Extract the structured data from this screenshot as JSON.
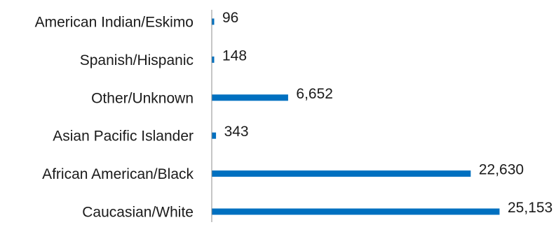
{
  "chart_data": {
    "type": "bar",
    "orientation": "horizontal",
    "categories": [
      "American Indian/Eskimo",
      "Spanish/Hispanic",
      "Other/Unknown",
      "Asian Pacific Islander",
      "African American/Black",
      "Caucasian/White"
    ],
    "values": [
      96,
      148,
      6652,
      343,
      22630,
      25153
    ],
    "value_labels": [
      "96",
      "148",
      "6,652",
      "343",
      "22,630",
      "25,153"
    ],
    "title": "",
    "xlabel": "",
    "ylabel": "",
    "xlim": [
      0,
      25153
    ],
    "grid": false,
    "legend": "none",
    "bar_color": "#0070C0",
    "axis_color": "#8c8c8c"
  }
}
